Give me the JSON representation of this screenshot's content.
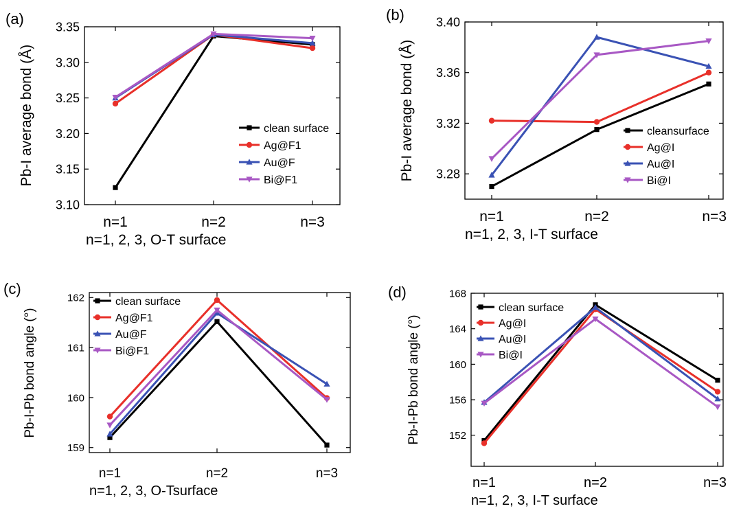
{
  "colors": {
    "clean": "#000000",
    "ag": "#e8302a",
    "au": "#3a52b4",
    "bi": "#a858c4"
  },
  "chart_data": [
    {
      "panel_label": "(a)",
      "type": "line",
      "xlabel": "n=1, 2, 3, O-T surface",
      "ylabel": "Pb-I average bond (Å)",
      "categories": [
        "n=1",
        "n=2",
        "n=3"
      ],
      "ylim": [
        3.1,
        3.35
      ],
      "yticks": [
        "3.10",
        "3.15",
        "3.20",
        "3.25",
        "3.30",
        "3.35"
      ],
      "legend_position": "center-right",
      "series": [
        {
          "name": "clean surface",
          "color_key": "clean",
          "marker": "square",
          "values": [
            3.124,
            3.337,
            3.325
          ]
        },
        {
          "name": "Ag@F1",
          "color_key": "ag",
          "marker": "circle",
          "values": [
            3.242,
            3.339,
            3.32
          ]
        },
        {
          "name": "Au@F",
          "color_key": "au",
          "marker": "triangle-up",
          "values": [
            3.25,
            3.339,
            3.327
          ]
        },
        {
          "name": "Bi@F1",
          "color_key": "bi",
          "marker": "triangle-down",
          "values": [
            3.251,
            3.34,
            3.334
          ]
        }
      ]
    },
    {
      "panel_label": "(b)",
      "type": "line",
      "xlabel": "n=1, 2, 3, I-T surface",
      "ylabel": "Pb-I average bond (Å)",
      "categories": [
        "n=1",
        "n=2",
        "n=3"
      ],
      "ylim": [
        3.26,
        3.4
      ],
      "yticks": [
        "3.28",
        "3.32",
        "3.36",
        "3.40"
      ],
      "legend_position": "bottom-right",
      "series": [
        {
          "name": "cleansurface",
          "color_key": "clean",
          "marker": "square",
          "values": [
            3.27,
            3.315,
            3.351
          ]
        },
        {
          "name": "Ag@I",
          "color_key": "ag",
          "marker": "circle",
          "values": [
            3.322,
            3.321,
            3.36
          ]
        },
        {
          "name": "Au@I",
          "color_key": "au",
          "marker": "triangle-up",
          "values": [
            3.279,
            3.388,
            3.365
          ]
        },
        {
          "name": "Bi@I",
          "color_key": "bi",
          "marker": "triangle-down",
          "values": [
            3.292,
            3.374,
            3.385
          ]
        }
      ]
    },
    {
      "panel_label": "(c)",
      "type": "line",
      "xlabel": "n=1, 2, 3, O-Tsurface",
      "ylabel": "Pb-I-Pb bond angle (°)",
      "categories": [
        "n=1",
        "n=2",
        "n=3"
      ],
      "ylim": [
        158.9,
        162.1
      ],
      "yticks": [
        "159",
        "160",
        "161",
        "162"
      ],
      "legend_position": "top-left",
      "series": [
        {
          "name": "clean surface",
          "color_key": "clean",
          "marker": "square",
          "values": [
            159.2,
            161.52,
            159.05
          ]
        },
        {
          "name": "Ag@F1",
          "color_key": "ag",
          "marker": "circle",
          "values": [
            159.62,
            161.95,
            159.99
          ]
        },
        {
          "name": "Au@F",
          "color_key": "au",
          "marker": "triangle-up",
          "values": [
            159.27,
            161.69,
            160.27
          ]
        },
        {
          "name": "Bi@F1",
          "color_key": "bi",
          "marker": "triangle-down",
          "values": [
            159.45,
            161.75,
            159.96
          ]
        }
      ]
    },
    {
      "panel_label": "(d)",
      "type": "line",
      "xlabel": "n=1, 2, 3, I-T surface",
      "ylabel": "Pb-I-Pb bond angle (°)",
      "categories": [
        "n=1",
        "n=2",
        "n=3"
      ],
      "ylim": [
        148.5,
        168.0
      ],
      "yticks": [
        "152",
        "156",
        "160",
        "164",
        "168"
      ],
      "legend_position": "top-left",
      "series": [
        {
          "name": "clean surface",
          "color_key": "clean",
          "marker": "square",
          "values": [
            151.4,
            166.7,
            158.2
          ]
        },
        {
          "name": "Ag@I",
          "color_key": "ag",
          "marker": "circle",
          "values": [
            151.1,
            166.2,
            156.9
          ]
        },
        {
          "name": "Au@I",
          "color_key": "au",
          "marker": "triangle-up",
          "values": [
            155.7,
            166.4,
            156.1
          ]
        },
        {
          "name": "Bi@I",
          "color_key": "bi",
          "marker": "triangle-down",
          "values": [
            155.6,
            165.1,
            155.2
          ]
        }
      ]
    }
  ]
}
